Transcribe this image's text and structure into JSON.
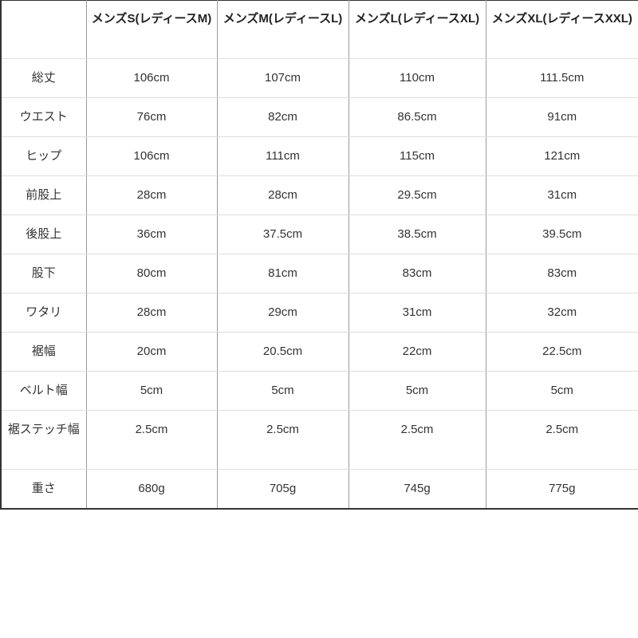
{
  "table": {
    "headers": [
      "",
      "メンズS(レディースM)",
      "メンズM(レディースL)",
      "メンズL(レディースXL)",
      "メンズXL(レディースXXL)"
    ],
    "rows": [
      {
        "label": "総丈",
        "values": [
          "106cm",
          "107cm",
          "110cm",
          "111.5cm"
        ]
      },
      {
        "label": "ウエスト",
        "values": [
          "76cm",
          "82cm",
          "86.5cm",
          "91cm"
        ]
      },
      {
        "label": "ヒップ",
        "values": [
          "106cm",
          "111cm",
          "115cm",
          "121cm"
        ]
      },
      {
        "label": "前股上",
        "values": [
          "28cm",
          "28cm",
          "29.5cm",
          "31cm"
        ]
      },
      {
        "label": "後股上",
        "values": [
          "36cm",
          "37.5cm",
          "38.5cm",
          "39.5cm"
        ]
      },
      {
        "label": "股下",
        "values": [
          "80cm",
          "81cm",
          "83cm",
          "83cm"
        ]
      },
      {
        "label": "ワタリ",
        "values": [
          "28cm",
          "29cm",
          "31cm",
          "32cm"
        ]
      },
      {
        "label": "裾幅",
        "values": [
          "20cm",
          "20.5cm",
          "22cm",
          "22.5cm"
        ]
      },
      {
        "label": "ベルト幅",
        "values": [
          "5cm",
          "5cm",
          "5cm",
          "5cm"
        ]
      },
      {
        "label": "裾ステッチ幅",
        "values": [
          "2.5cm",
          "2.5cm",
          "2.5cm",
          "2.5cm"
        ]
      },
      {
        "label": "重さ",
        "values": [
          "680g",
          "705g",
          "745g",
          "775g"
        ]
      }
    ]
  }
}
